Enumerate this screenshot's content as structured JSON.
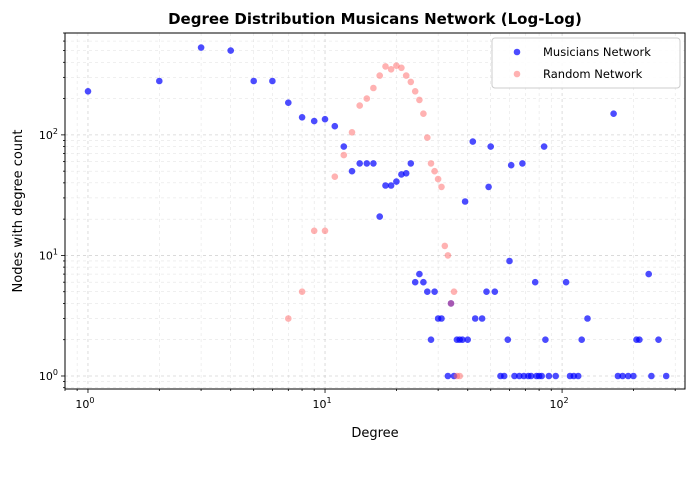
{
  "chart_data": {
    "type": "scatter",
    "title": "Degree Distribution Musicans Network (Log-Log)",
    "xlabel": "Degree",
    "ylabel": "Nodes with degree count",
    "xscale": "log",
    "yscale": "log",
    "xlim": [
      0.8,
      330
    ],
    "ylim": [
      0.78,
      700
    ],
    "xticks": [
      {
        "value": 1,
        "base": "10",
        "exp": "0"
      },
      {
        "value": 10,
        "base": "10",
        "exp": "1"
      },
      {
        "value": 100,
        "base": "10",
        "exp": "2"
      }
    ],
    "yticks": [
      {
        "value": 1,
        "base": "10",
        "exp": "0"
      },
      {
        "value": 10,
        "base": "10",
        "exp": "1"
      },
      {
        "value": 100,
        "base": "10",
        "exp": "2"
      }
    ],
    "grid": true,
    "legend_position": "top-right",
    "series": [
      {
        "name": "Musicians Network",
        "color": "#0000ff",
        "points": [
          [
            1,
            230
          ],
          [
            2,
            280
          ],
          [
            3,
            530
          ],
          [
            4,
            500
          ],
          [
            5,
            280
          ],
          [
            6,
            280
          ],
          [
            7,
            185
          ],
          [
            8,
            140
          ],
          [
            9,
            130
          ],
          [
            10,
            135
          ],
          [
            11,
            118
          ],
          [
            12,
            80
          ],
          [
            13,
            50
          ],
          [
            14,
            58
          ],
          [
            15,
            58
          ],
          [
            16,
            58
          ],
          [
            17,
            21
          ],
          [
            18,
            38
          ],
          [
            19,
            38
          ],
          [
            20,
            41
          ],
          [
            21,
            47
          ],
          [
            22,
            48
          ],
          [
            23,
            58
          ],
          [
            24,
            6
          ],
          [
            25,
            7
          ],
          [
            26,
            6
          ],
          [
            27,
            5
          ],
          [
            28,
            2
          ],
          [
            29,
            5
          ],
          [
            30,
            3
          ],
          [
            31,
            3
          ],
          [
            33,
            1
          ],
          [
            34,
            4
          ],
          [
            35,
            1
          ],
          [
            36,
            2
          ],
          [
            37,
            2
          ],
          [
            38,
            2
          ],
          [
            39,
            28
          ],
          [
            40,
            2
          ],
          [
            42,
            88
          ],
          [
            43,
            3
          ],
          [
            46,
            3
          ],
          [
            48,
            5
          ],
          [
            49,
            37
          ],
          [
            50,
            80
          ],
          [
            52,
            5
          ],
          [
            55,
            1
          ],
          [
            57,
            1
          ],
          [
            59,
            2
          ],
          [
            60,
            9
          ],
          [
            61,
            56
          ],
          [
            63,
            1
          ],
          [
            66,
            1
          ],
          [
            68,
            58
          ],
          [
            69,
            1
          ],
          [
            72,
            1
          ],
          [
            74,
            1
          ],
          [
            77,
            6
          ],
          [
            78,
            1
          ],
          [
            80,
            1
          ],
          [
            82,
            1
          ],
          [
            84,
            80
          ],
          [
            85,
            2
          ],
          [
            88,
            1
          ],
          [
            94,
            1
          ],
          [
            104,
            6
          ],
          [
            108,
            1
          ],
          [
            112,
            1
          ],
          [
            117,
            1
          ],
          [
            121,
            2
          ],
          [
            128,
            3
          ],
          [
            165,
            150
          ],
          [
            172,
            1
          ],
          [
            180,
            1
          ],
          [
            190,
            1
          ],
          [
            200,
            1
          ],
          [
            206,
            2
          ],
          [
            212,
            2
          ],
          [
            232,
            7
          ],
          [
            238,
            1
          ],
          [
            255,
            2
          ],
          [
            275,
            1
          ]
        ]
      },
      {
        "name": "Random Network",
        "color": "#ff6666",
        "points": [
          [
            7,
            3
          ],
          [
            8,
            5
          ],
          [
            9,
            16
          ],
          [
            10,
            16
          ],
          [
            11,
            45
          ],
          [
            12,
            68
          ],
          [
            13,
            105
          ],
          [
            14,
            175
          ],
          [
            15,
            200
          ],
          [
            16,
            245
          ],
          [
            17,
            310
          ],
          [
            18,
            370
          ],
          [
            19,
            350
          ],
          [
            20,
            375
          ],
          [
            21,
            360
          ],
          [
            22,
            310
          ],
          [
            23,
            275
          ],
          [
            24,
            230
          ],
          [
            25,
            195
          ],
          [
            26,
            150
          ],
          [
            27,
            95
          ],
          [
            28,
            58
          ],
          [
            29,
            50
          ],
          [
            30,
            43
          ],
          [
            31,
            37
          ],
          [
            32,
            12
          ],
          [
            33,
            10
          ],
          [
            34,
            4
          ],
          [
            35,
            5
          ],
          [
            36,
            1
          ],
          [
            37,
            1
          ]
        ]
      }
    ]
  }
}
